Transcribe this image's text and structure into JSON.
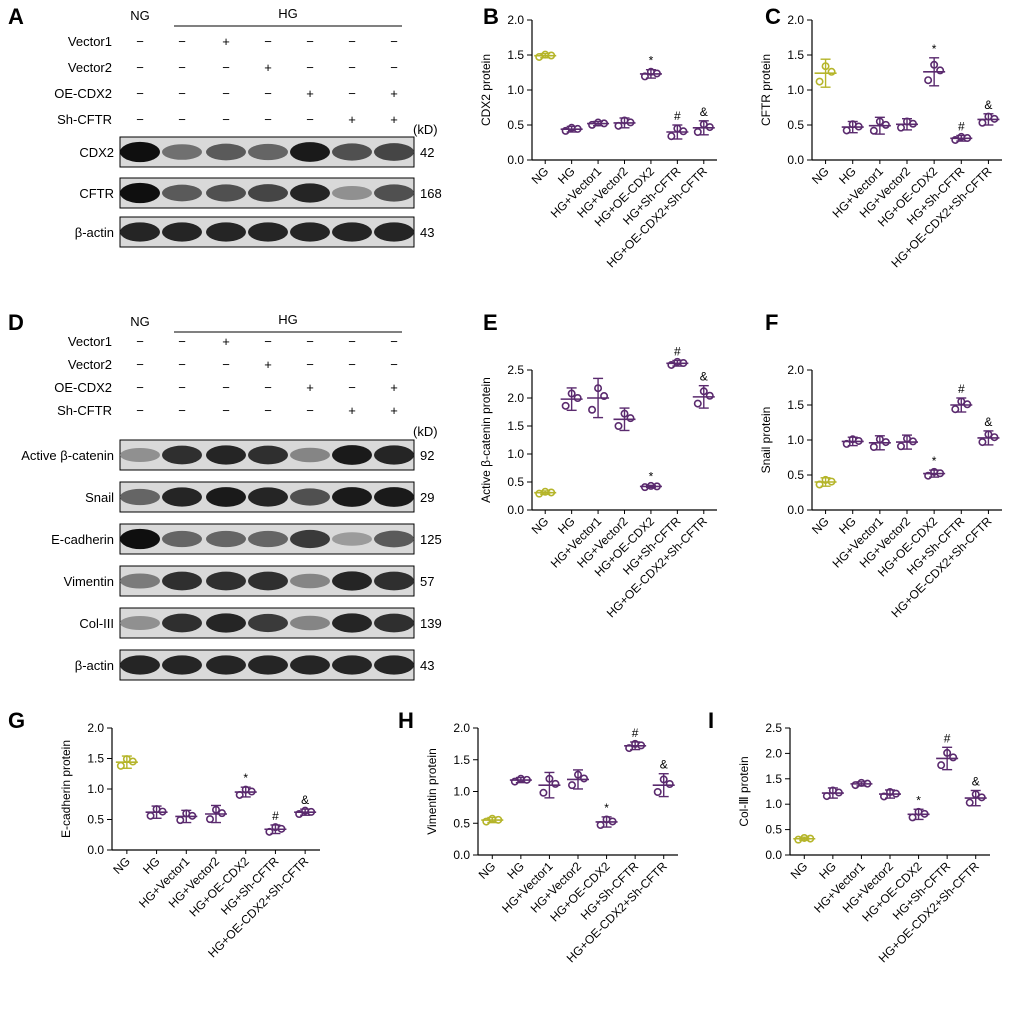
{
  "panel_letters": {
    "A": "A",
    "B": "B",
    "C": "C",
    "D": "D",
    "E": "E",
    "F": "F",
    "G": "G",
    "H": "H",
    "I": "I"
  },
  "blots": {
    "kd_label": "(kD)",
    "top": {
      "ng_label": "NG",
      "hg_label": "HG",
      "treatment_rows": [
        {
          "name": "Vector1",
          "signs": [
            "−",
            "−",
            "+",
            "−",
            "−",
            "−",
            "−"
          ]
        },
        {
          "name": "Vector2",
          "signs": [
            "−",
            "−",
            "−",
            "+",
            "−",
            "−",
            "−"
          ]
        },
        {
          "name": "OE-CDX2",
          "signs": [
            "−",
            "−",
            "−",
            "−",
            "+",
            "−",
            "+"
          ]
        },
        {
          "name": "Sh-CFTR",
          "signs": [
            "−",
            "−",
            "−",
            "−",
            "−",
            "+",
            "+"
          ]
        }
      ],
      "bands": [
        {
          "name": "CDX2",
          "kd": "42",
          "intensity": [
            1.0,
            0.55,
            0.65,
            0.6,
            0.95,
            0.7,
            0.75
          ]
        },
        {
          "name": "CFTR",
          "kd": "168",
          "intensity": [
            1.0,
            0.65,
            0.7,
            0.75,
            0.9,
            0.4,
            0.7
          ]
        },
        {
          "name": "β-actin",
          "kd": "43",
          "intensity": [
            0.9,
            0.9,
            0.9,
            0.9,
            0.9,
            0.9,
            0.9
          ]
        }
      ]
    },
    "bottom": {
      "ng_label": "NG",
      "hg_label": "HG",
      "treatment_rows": [
        {
          "name": "Vector1",
          "signs": [
            "−",
            "−",
            "+",
            "−",
            "−",
            "−",
            "−"
          ]
        },
        {
          "name": "Vector2",
          "signs": [
            "−",
            "−",
            "−",
            "+",
            "−",
            "−",
            "−"
          ]
        },
        {
          "name": "OE-CDX2",
          "signs": [
            "−",
            "−",
            "−",
            "−",
            "+",
            "−",
            "+"
          ]
        },
        {
          "name": "Sh-CFTR",
          "signs": [
            "−",
            "−",
            "−",
            "−",
            "−",
            "+",
            "+"
          ]
        }
      ],
      "bands": [
        {
          "name": "Active β-catenin",
          "kd": "92",
          "intensity": [
            0.4,
            0.85,
            0.9,
            0.85,
            0.45,
            0.95,
            0.9
          ]
        },
        {
          "name": "Snail",
          "kd": "29",
          "intensity": [
            0.6,
            0.9,
            0.95,
            0.9,
            0.7,
            0.95,
            0.95
          ]
        },
        {
          "name": "E-cadherin",
          "kd": "125",
          "intensity": [
            1.0,
            0.6,
            0.6,
            0.6,
            0.8,
            0.35,
            0.65
          ]
        },
        {
          "name": "Vimentin",
          "kd": "57",
          "intensity": [
            0.5,
            0.85,
            0.85,
            0.85,
            0.45,
            0.9,
            0.85
          ]
        },
        {
          "name": "Col-III",
          "kd": "139",
          "intensity": [
            0.4,
            0.85,
            0.9,
            0.8,
            0.45,
            0.9,
            0.85
          ]
        },
        {
          "name": "β-actin",
          "kd": "43",
          "intensity": [
            0.9,
            0.9,
            0.9,
            0.9,
            0.9,
            0.9,
            0.9
          ]
        }
      ]
    }
  },
  "colors": {
    "ng": "#b5b52a",
    "group": "#5a2a6e"
  },
  "chart_data": [
    {
      "id": "B",
      "type": "scatter",
      "ylabel": "CDX2 protein",
      "ylim": [
        0,
        2.0
      ],
      "ticks": [
        "0.0",
        "0.5",
        "1.0",
        "1.5",
        "2.0"
      ],
      "tick_values": [
        0,
        0.5,
        1.0,
        1.5,
        2.0
      ],
      "categories": [
        "NG",
        "HG",
        "HG+Vector1",
        "HG+Vector2",
        "HG+OE-CDX2",
        "HG+Sh-CFTR",
        "HG+OE-CDX2+Sh-CFTR"
      ],
      "means": [
        1.49,
        0.44,
        0.52,
        0.53,
        1.23,
        0.4,
        0.46
      ],
      "sd": [
        0.03,
        0.04,
        0.03,
        0.07,
        0.06,
        0.1,
        0.1
      ],
      "annotations": [
        "",
        "",
        "",
        "",
        "*",
        "#",
        "&"
      ]
    },
    {
      "id": "C",
      "type": "scatter",
      "ylabel": "CFTR protein",
      "ylim": [
        0,
        2.0
      ],
      "ticks": [
        "0.0",
        "0.5",
        "1.0",
        "1.5",
        "2.0"
      ],
      "tick_values": [
        0,
        0.5,
        1.0,
        1.5,
        2.0
      ],
      "categories": [
        "NG",
        "HG",
        "HG+Vector1",
        "HG+Vector2",
        "HG+OE-CDX2",
        "HG+Sh-CFTR",
        "HG+OE-CDX2+Sh-CFTR"
      ],
      "means": [
        1.24,
        0.47,
        0.49,
        0.51,
        1.26,
        0.31,
        0.58
      ],
      "sd": [
        0.2,
        0.08,
        0.12,
        0.08,
        0.2,
        0.04,
        0.08
      ],
      "annotations": [
        "",
        "",
        "",
        "",
        "*",
        "#",
        "&"
      ]
    },
    {
      "id": "E",
      "type": "scatter",
      "ylabel": "Active β-catenin protein",
      "ylim": [
        0,
        2.5
      ],
      "ticks": [
        "0.0",
        "0.5",
        "1.0",
        "1.5",
        "2.0",
        "2.5"
      ],
      "tick_values": [
        0,
        0.5,
        1.0,
        1.5,
        2.0,
        2.5
      ],
      "categories": [
        "NG",
        "HG",
        "HG+Vector1",
        "HG+Vector2",
        "HG+OE-CDX2",
        "HG+Sh-CFTR",
        "HG+OE-CDX2+Sh-CFTR"
      ],
      "means": [
        0.31,
        1.98,
        2.0,
        1.62,
        0.42,
        2.62,
        2.02
      ],
      "sd": [
        0.03,
        0.2,
        0.35,
        0.2,
        0.02,
        0.05,
        0.2
      ],
      "annotations": [
        "",
        "",
        "",
        "",
        "*",
        "#",
        "&"
      ]
    },
    {
      "id": "F",
      "type": "scatter",
      "ylabel": "Snail protein",
      "ylim": [
        0,
        2.0
      ],
      "ticks": [
        "0.0",
        "0.5",
        "1.0",
        "1.5",
        "2.0"
      ],
      "tick_values": [
        0,
        0.5,
        1.0,
        1.5,
        2.0
      ],
      "categories": [
        "NG",
        "HG",
        "HG+Vector1",
        "HG+Vector2",
        "HG+OE-CDX2",
        "HG+Sh-CFTR",
        "HG+OE-CDX2+Sh-CFTR"
      ],
      "means": [
        0.4,
        0.98,
        0.96,
        0.97,
        0.52,
        1.5,
        1.03
      ],
      "sd": [
        0.06,
        0.06,
        0.1,
        0.1,
        0.05,
        0.1,
        0.1
      ],
      "annotations": [
        "",
        "",
        "",
        "",
        "*",
        "#",
        "&"
      ]
    },
    {
      "id": "G",
      "type": "scatter",
      "ylabel": "E-cadherin protein",
      "ylim": [
        0,
        2.0
      ],
      "ticks": [
        "0.0",
        "0.5",
        "1.0",
        "1.5",
        "2.0"
      ],
      "tick_values": [
        0,
        0.5,
        1.0,
        1.5,
        2.0
      ],
      "categories": [
        "NG",
        "HG",
        "HG+Vector1",
        "HG+Vector2",
        "HG+OE-CDX2",
        "HG+Sh-CFTR",
        "HG+OE-CDX2+Sh-CFTR"
      ],
      "means": [
        1.44,
        0.62,
        0.55,
        0.59,
        0.95,
        0.34,
        0.62
      ],
      "sd": [
        0.1,
        0.1,
        0.1,
        0.14,
        0.08,
        0.07,
        0.05
      ],
      "annotations": [
        "",
        "",
        "",
        "",
        "*",
        "#",
        "&"
      ]
    },
    {
      "id": "H",
      "type": "scatter",
      "ylabel": "Vimentin protein",
      "ylim": [
        0,
        2.0
      ],
      "ticks": [
        "0.0",
        "0.5",
        "1.0",
        "1.5",
        "2.0"
      ],
      "tick_values": [
        0,
        0.5,
        1.0,
        1.5,
        2.0
      ],
      "categories": [
        "NG",
        "HG",
        "HG+Vector1",
        "HG+Vector2",
        "HG+OE-CDX2",
        "HG+Sh-CFTR",
        "HG+OE-CDX2+Sh-CFTR"
      ],
      "means": [
        0.55,
        1.18,
        1.1,
        1.19,
        0.52,
        1.72,
        1.1
      ],
      "sd": [
        0.04,
        0.04,
        0.2,
        0.15,
        0.08,
        0.06,
        0.18
      ],
      "annotations": [
        "",
        "",
        "",
        "",
        "*",
        "#",
        "&"
      ]
    },
    {
      "id": "I",
      "type": "scatter",
      "ylabel": "Col-Ⅲ protein",
      "ylim": [
        0,
        2.5
      ],
      "ticks": [
        "0.0",
        "0.5",
        "1.0",
        "1.5",
        "2.0",
        "2.5"
      ],
      "tick_values": [
        0,
        0.5,
        1.0,
        1.5,
        2.0,
        2.5
      ],
      "categories": [
        "NG",
        "HG",
        "HG+Vector1",
        "HG+Vector2",
        "HG+OE-CDX2",
        "HG+Sh-CFTR",
        "HG+OE-CDX2+Sh-CFTR"
      ],
      "means": [
        0.32,
        1.22,
        1.4,
        1.2,
        0.8,
        1.9,
        1.12
      ],
      "sd": [
        0.03,
        0.1,
        0.04,
        0.08,
        0.1,
        0.22,
        0.15
      ],
      "annotations": [
        "",
        "",
        "",
        "",
        "*",
        "#",
        "&"
      ]
    }
  ]
}
